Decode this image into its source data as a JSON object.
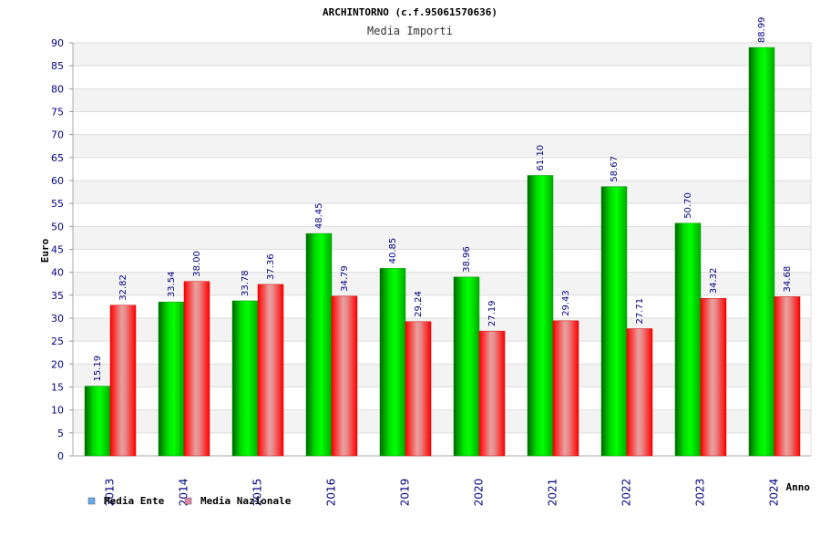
{
  "chart_data": {
    "type": "bar",
    "title": "ARCHINTORNO (c.f.95061570636)",
    "subtitle": "Media Importi",
    "xlabel": "Anno",
    "ylabel": "Euro",
    "ylim": [
      0,
      90
    ],
    "ytick_step": 5,
    "grid": true,
    "legend_position": "bottom-left",
    "categories": [
      "2013",
      "2014",
      "2015",
      "2016",
      "2019",
      "2020",
      "2021",
      "2022",
      "2023",
      "2024"
    ],
    "series": [
      {
        "name": "Media Ente",
        "color": "#00cc00",
        "legend_color": "#66aaee",
        "values": [
          15.19,
          33.54,
          33.78,
          48.45,
          40.85,
          38.96,
          61.1,
          58.67,
          50.7,
          88.99
        ],
        "labels": [
          "15.19",
          "33.54",
          "33.78",
          "48.45",
          "40.85",
          "38.96",
          "61.10",
          "58.67",
          "50.70",
          "88.99"
        ]
      },
      {
        "name": "Media Nazionale",
        "color": "#ee1111",
        "legend_color": "#dd88aa",
        "values": [
          32.82,
          38.0,
          37.36,
          34.79,
          29.24,
          27.19,
          29.43,
          27.71,
          34.32,
          34.68
        ],
        "labels": [
          "32.82",
          "38.00",
          "37.36",
          "34.79",
          "29.24",
          "27.19",
          "29.43",
          "27.71",
          "34.32",
          "34.68"
        ]
      }
    ]
  }
}
